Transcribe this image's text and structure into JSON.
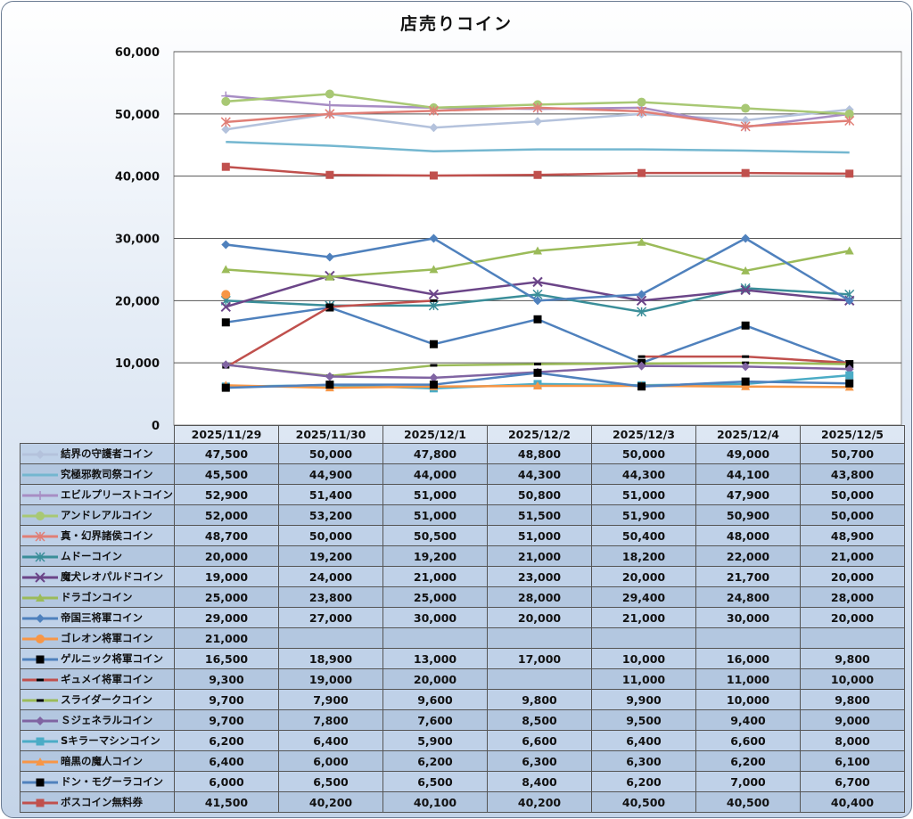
{
  "chart_data": {
    "type": "line",
    "title": "店売りコイン",
    "categories": [
      "2025/11/29",
      "2025/11/30",
      "2025/12/1",
      "2025/12/2",
      "2025/12/3",
      "2025/12/4",
      "2025/12/5"
    ],
    "ylim": [
      0,
      60000
    ],
    "yticks": [
      "0",
      "10,000",
      "20,000",
      "30,000",
      "40,000",
      "50,000",
      "60,000"
    ],
    "grid": true,
    "legend": "data-table-bottom",
    "series": [
      {
        "name": "結界の守護者コイン",
        "color": "#b4c2dc",
        "marker": "diamond",
        "values": [
          47500,
          50000,
          47800,
          48800,
          50000,
          49000,
          50700
        ],
        "labels": [
          "47,500",
          "50,000",
          "47,800",
          "48,800",
          "50,000",
          "49,000",
          "50,700"
        ]
      },
      {
        "name": "究極邪教司祭コイン",
        "color": "#74b7d0",
        "marker": "none",
        "values": [
          45500,
          44900,
          44000,
          44300,
          44300,
          44100,
          43800
        ],
        "labels": [
          "45,500",
          "44,900",
          "44,000",
          "44,300",
          "44,300",
          "44,100",
          "43,800"
        ]
      },
      {
        "name": "エビルプリーストコイン",
        "color": "#a78dc4",
        "marker": "plus",
        "values": [
          52900,
          51400,
          51000,
          50800,
          51000,
          47900,
          50000
        ],
        "labels": [
          "52,900",
          "51,400",
          "51,000",
          "50,800",
          "51,000",
          "47,900",
          "50,000"
        ]
      },
      {
        "name": "アンドレアルコイン",
        "color": "#a8c874",
        "marker": "circle",
        "values": [
          52000,
          53200,
          51000,
          51500,
          51900,
          50900,
          50000
        ],
        "labels": [
          "52,000",
          "53,200",
          "51,000",
          "51,500",
          "51,900",
          "50,900",
          "50,000"
        ]
      },
      {
        "name": "真・幻界諸侯コイン",
        "color": "#e07e76",
        "marker": "asterisk",
        "values": [
          48700,
          50000,
          50500,
          51000,
          50400,
          48000,
          48900
        ],
        "labels": [
          "48,700",
          "50,000",
          "50,500",
          "51,000",
          "50,400",
          "48,000",
          "48,900"
        ]
      },
      {
        "name": "ムドーコイン",
        "color": "#3a8e99",
        "marker": "asterisk",
        "values": [
          20000,
          19200,
          19200,
          21000,
          18200,
          22000,
          21000
        ],
        "labels": [
          "20,000",
          "19,200",
          "19,200",
          "21,000",
          "18,200",
          "22,000",
          "21,000"
        ]
      },
      {
        "name": "魔犬レオパルドコイン",
        "color": "#6b4588",
        "marker": "x",
        "values": [
          19000,
          24000,
          21000,
          23000,
          20000,
          21700,
          20000
        ],
        "labels": [
          "19,000",
          "24,000",
          "21,000",
          "23,000",
          "20,000",
          "21,700",
          "20,000"
        ]
      },
      {
        "name": "ドラゴンコイン",
        "color": "#9bbb59",
        "marker": "triangle",
        "values": [
          25000,
          23800,
          25000,
          28000,
          29400,
          24800,
          28000
        ],
        "labels": [
          "25,000",
          "23,800",
          "25,000",
          "28,000",
          "29,400",
          "24,800",
          "28,000"
        ]
      },
      {
        "name": "帝国三将軍コイン",
        "color": "#4f81bd",
        "marker": "diamond",
        "values": [
          29000,
          27000,
          30000,
          20000,
          21000,
          30000,
          20000
        ],
        "labels": [
          "29,000",
          "27,000",
          "30,000",
          "20,000",
          "21,000",
          "30,000",
          "20,000"
        ]
      },
      {
        "name": "ゴレオン将軍コイン",
        "color": "#f79646",
        "marker": "circle",
        "values": [
          21000,
          null,
          null,
          null,
          null,
          null,
          null
        ],
        "labels": [
          "21,000",
          "",
          "",
          "",
          "",
          "",
          ""
        ]
      },
      {
        "name": "ゲルニック将軍コイン",
        "color": "#4f81bd",
        "marker": "square-black",
        "values": [
          16500,
          18900,
          13000,
          17000,
          10000,
          16000,
          9800
        ],
        "labels": [
          "16,500",
          "18,900",
          "13,000",
          "17,000",
          "10,000",
          "16,000",
          "9,800"
        ]
      },
      {
        "name": "ギュメイ将軍コイン",
        "color": "#c0504d",
        "marker": "dash-black",
        "values": [
          9300,
          19000,
          20000,
          null,
          11000,
          11000,
          10000
        ],
        "labels": [
          "9,300",
          "19,000",
          "20,000",
          "",
          "11,000",
          "11,000",
          "10,000"
        ]
      },
      {
        "name": "スライダークコイン",
        "color": "#9bbb59",
        "marker": "dash-black",
        "values": [
          9700,
          7900,
          9600,
          9800,
          9900,
          10000,
          9800
        ],
        "labels": [
          "9,700",
          "7,900",
          "9,600",
          "9,800",
          "9,900",
          "10,000",
          "9,800"
        ]
      },
      {
        "name": "Ｓジェネラルコイン",
        "color": "#8064a2",
        "marker": "diamond",
        "values": [
          9700,
          7800,
          7600,
          8500,
          9500,
          9400,
          9000
        ],
        "labels": [
          "9,700",
          "7,800",
          "7,600",
          "8,500",
          "9,500",
          "9,400",
          "9,000"
        ]
      },
      {
        "name": "Sキラーマシンコイン",
        "color": "#4bacc6",
        "marker": "square",
        "values": [
          6200,
          6400,
          5900,
          6600,
          6400,
          6600,
          8000
        ],
        "labels": [
          "6,200",
          "6,400",
          "5,900",
          "6,600",
          "6,400",
          "6,600",
          "8,000"
        ]
      },
      {
        "name": "暗黒の魔人コイン",
        "color": "#f79646",
        "marker": "triangle",
        "values": [
          6400,
          6000,
          6200,
          6300,
          6300,
          6200,
          6100
        ],
        "labels": [
          "6,400",
          "6,000",
          "6,200",
          "6,300",
          "6,300",
          "6,200",
          "6,100"
        ]
      },
      {
        "name": "ドン・モグーラコイン",
        "color": "#4f81bd",
        "marker": "square-black",
        "values": [
          6000,
          6500,
          6500,
          8400,
          6200,
          7000,
          6700
        ],
        "labels": [
          "6,000",
          "6,500",
          "6,500",
          "8,400",
          "6,200",
          "7,000",
          "6,700"
        ]
      },
      {
        "name": "ボスコイン無料券",
        "color": "#c0504d",
        "marker": "square",
        "values": [
          41500,
          40200,
          40100,
          40200,
          40500,
          40500,
          40400
        ],
        "labels": [
          "41,500",
          "40,200",
          "40,100",
          "40,200",
          "40,500",
          "40,500",
          "40,400"
        ]
      }
    ]
  }
}
